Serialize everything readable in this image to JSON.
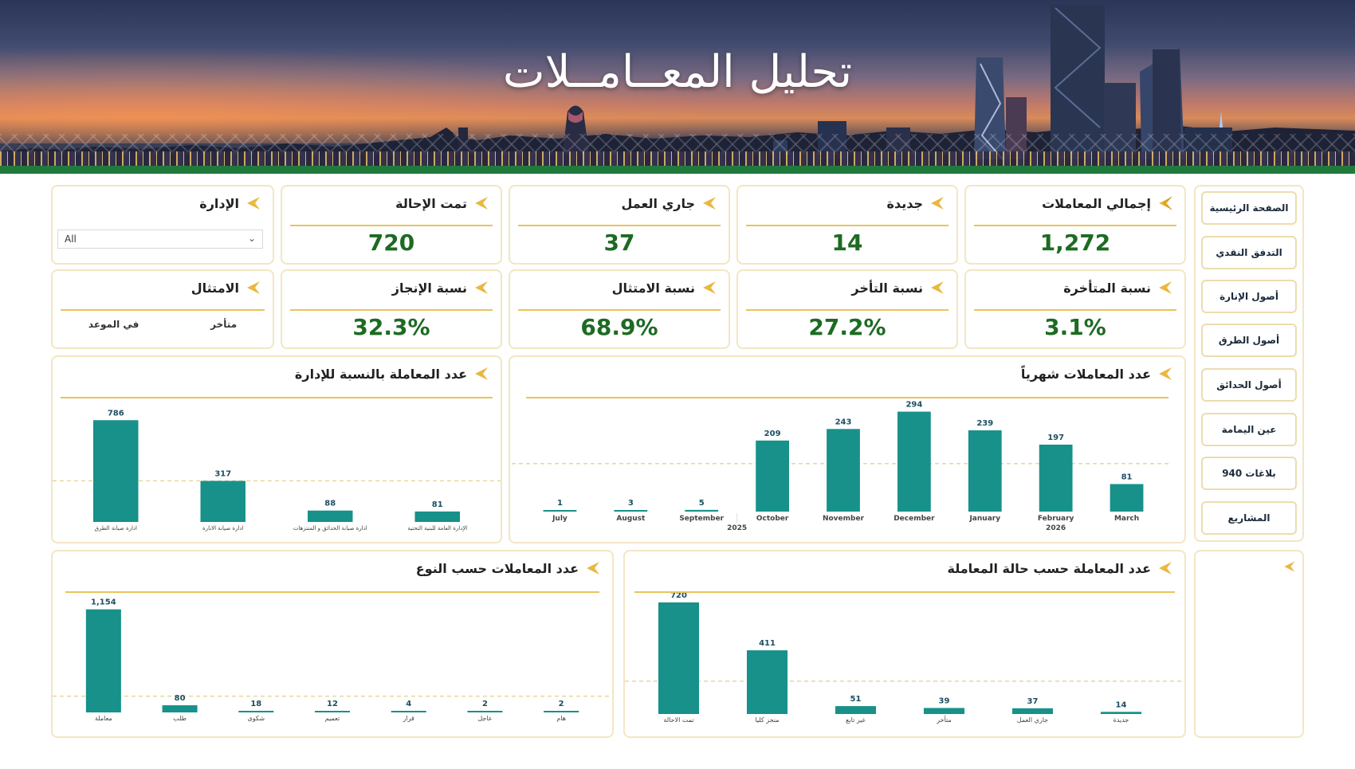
{
  "banner": {
    "title": "تحليل المعــامــلات"
  },
  "nav": {
    "items": [
      {
        "label": "الصفحة الرئيسية"
      },
      {
        "label": "التدفق النقدي"
      },
      {
        "label": "أصول الإنارة"
      },
      {
        "label": "أصول الطرق"
      },
      {
        "label": "أصول الحدائق"
      },
      {
        "label": "عين اليمامة"
      },
      {
        "label": "بلاغات 940"
      },
      {
        "label": "المشاريع"
      }
    ]
  },
  "kpis": {
    "total": {
      "label": "إجمالي المعاملات",
      "value": "1,272"
    },
    "new": {
      "label": "جديدة",
      "value": "14"
    },
    "in_progress": {
      "label": "جاري العمل",
      "value": "37"
    },
    "referred": {
      "label": "تمت الإحالة",
      "value": "720"
    },
    "department": {
      "label": "الإدارة",
      "select_value": "All"
    },
    "late_ratio": {
      "label": "نسبة المتأخرة",
      "value": "3.1%"
    },
    "delay_ratio": {
      "label": "نسبة التأخر",
      "value": "27.2%"
    },
    "compliance_ratio": {
      "label": "نسبة الامتثال",
      "value": "68.9%"
    },
    "completion_ratio": {
      "label": "نسبة الإنجاز",
      "value": "32.3%"
    },
    "compliance": {
      "label": "الامتثال",
      "late": "متأخر",
      "on_time": "في الموعد"
    }
  },
  "colors": {
    "bar": "#17918a",
    "accent": "#e9c35b",
    "kpi": "#1d6b23"
  },
  "chart_data": [
    {
      "type": "bar",
      "title": "عدد المعاملات شهرياً",
      "categories": [
        "July",
        "August",
        "September",
        "October",
        "November",
        "December",
        "January",
        "February",
        "March"
      ],
      "year_labels": [
        {
          "label": "2025",
          "after": "September"
        },
        {
          "label": "2026",
          "under": "February"
        }
      ],
      "values": [
        1,
        3,
        5,
        209,
        243,
        294,
        239,
        197,
        81
      ],
      "ylim": [
        0,
        300
      ],
      "average_line": true
    },
    {
      "type": "bar",
      "title": "عدد المعاملة بالنسبة للإدارة",
      "categories": [
        "ادارة صيانة الطرق",
        "ادارة صيانة الانارة",
        "ادارة صيانة الحدائق و المنتزهات",
        "الإدارة العامة للبنية التحتية"
      ],
      "values": [
        786,
        317,
        88,
        81
      ],
      "ylim": [
        0,
        800
      ],
      "average_line": true
    },
    {
      "type": "bar",
      "title": "عدد المعاملات حسب النوع",
      "categories": [
        "معاملة",
        "طلب",
        "شكوى",
        "تعميم",
        "قرار",
        "عاجل",
        "هام"
      ],
      "values": [
        1154,
        80,
        18,
        12,
        4,
        2,
        2
      ],
      "ylim": [
        0,
        1160
      ],
      "average_line": true
    },
    {
      "type": "bar",
      "title": "عدد المعاملة حسب حالة المعاملة",
      "categories": [
        "تمت الاحالة",
        "منجز كليا",
        "غير تابع",
        "متأخر",
        "جاري العمل",
        "جديدة"
      ],
      "values": [
        720,
        411,
        51,
        39,
        37,
        14
      ],
      "ylim": [
        0,
        730
      ],
      "average_line": true
    }
  ]
}
